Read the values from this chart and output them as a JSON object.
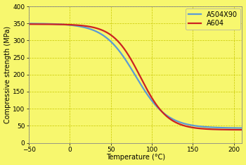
{
  "title": "",
  "xlabel": "Temperature (°C)",
  "ylabel": "Compressive strength (MPa)",
  "xlim": [
    -50,
    210
  ],
  "ylim": [
    0,
    400
  ],
  "xticks": [
    -50,
    0,
    50,
    100,
    150,
    200
  ],
  "yticks": [
    0,
    50,
    100,
    150,
    200,
    250,
    300,
    350,
    400
  ],
  "background_color": "#f7f76e",
  "grid_color": "#c8c800",
  "line1_color": "#5b9bd5",
  "line2_color": "#cc2222",
  "line1_label": "A504X90",
  "line2_label": "A604",
  "line_width": 1.6,
  "legend_fontsize": 7,
  "axis_fontsize": 7,
  "tick_fontsize": 6.5,
  "A504X90_high": 350,
  "A504X90_low": 43,
  "A504X90_k": 0.052,
  "A504X90_x0": 80,
  "A604_high": 348,
  "A604_low": 38,
  "A604_k": 0.06,
  "A604_x0": 86
}
